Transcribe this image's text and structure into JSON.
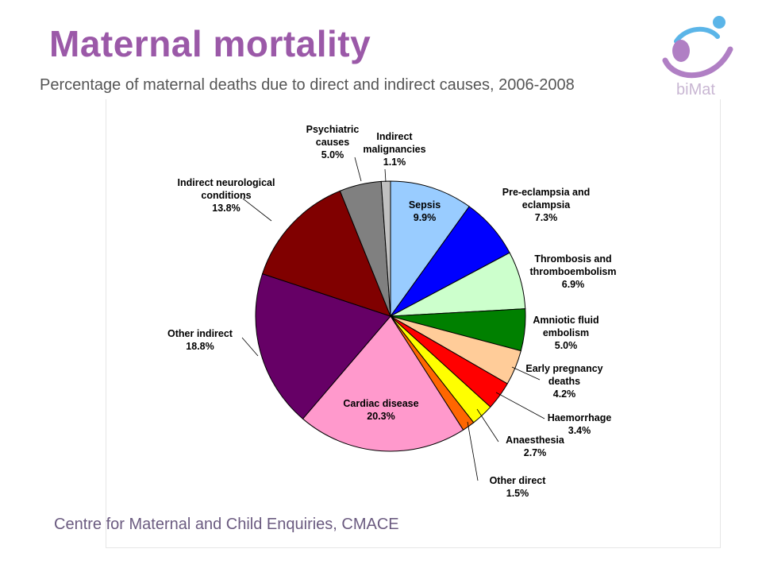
{
  "slide": {
    "title": "Maternal mortality",
    "subtitle": "Percentage of maternal deaths due to direct and indirect causes, 2006-2008",
    "source": "Centre for Maternal and Child Enquiries, CMACE",
    "logo_text": "biMat"
  },
  "chart_data": {
    "type": "pie",
    "title": "",
    "start_angle_deg": 0,
    "direction": "clockwise",
    "slices": [
      {
        "label": "Sepsis",
        "value": 9.9,
        "display": "9.9%",
        "color": "#99ccff"
      },
      {
        "label": "Pre-eclampsia and eclampsia",
        "value": 7.3,
        "display": "7.3%",
        "color": "#0000ff"
      },
      {
        "label": "Thrombosis and thromboembolism",
        "value": 6.9,
        "display": "6.9%",
        "color": "#ccffcc"
      },
      {
        "label": "Amniotic fluid embolism",
        "value": 5.0,
        "display": "5.0%",
        "color": "#008000"
      },
      {
        "label": "Early pregnancy deaths",
        "value": 4.2,
        "display": "4.2%",
        "color": "#ffcc99"
      },
      {
        "label": "Haemorrhage",
        "value": 3.4,
        "display": "3.4%",
        "color": "#ff0000"
      },
      {
        "label": "Anaesthesia",
        "value": 2.7,
        "display": "2.7%",
        "color": "#ffff00"
      },
      {
        "label": "Other direct",
        "value": 1.5,
        "display": "1.5%",
        "color": "#ff6600"
      },
      {
        "label": "Cardiac disease",
        "value": 20.3,
        "display": "20.3%",
        "color": "#ff99cc"
      },
      {
        "label": "Other indirect",
        "value": 18.8,
        "display": "18.8%",
        "color": "#660066"
      },
      {
        "label": "Indirect neurological conditions",
        "value": 13.8,
        "display": "13.8%",
        "color": "#800000"
      },
      {
        "label": "Psychiatric causes",
        "value": 5.0,
        "display": "5.0%",
        "color": "#808080"
      },
      {
        "label": "Indirect malignancies",
        "value": 1.1,
        "display": "1.1%",
        "color": "#c0c0c0"
      }
    ]
  }
}
